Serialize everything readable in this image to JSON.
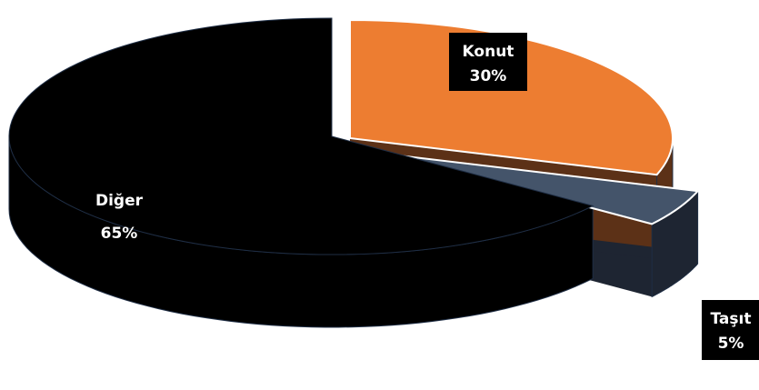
{
  "chart_data": {
    "type": "pie",
    "style": "3d-exploded",
    "slices": [
      {
        "name": "Konut",
        "value": 30,
        "label": "30%",
        "color": "#ED7D31",
        "side_color": "#5C3117"
      },
      {
        "name": "Taşıt",
        "value": 5,
        "label": "5%",
        "color": "#44546A",
        "side_color": "#1E2532"
      },
      {
        "name": "Diğer",
        "value": 65,
        "label": "65%",
        "color": "#000000",
        "side_color": "#000000"
      }
    ],
    "legend": "none"
  }
}
